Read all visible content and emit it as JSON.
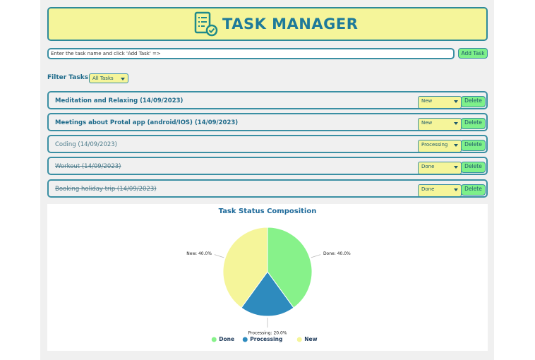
{
  "header": {
    "title": "TASK MANAGER"
  },
  "input": {
    "placeholder": "Enter the task name and click 'Add Task' =>",
    "button": "Add Task"
  },
  "filter": {
    "label": "Filter Tasks:",
    "selected": "All Tasks"
  },
  "tasks": [
    {
      "text": "Meditation and Relaxing (14/09/2023)",
      "status": "New",
      "button": "Delete"
    },
    {
      "text": "Meetings about Protal app (android/IOS) (14/09/2023)",
      "status": "New",
      "button": "Delete"
    },
    {
      "text": "Coding (14/09/2023)",
      "status": "Processing",
      "button": "Delete"
    },
    {
      "text": "Workout (14/09/2023)",
      "status": "Done",
      "button": "Delete"
    },
    {
      "text": "Booking holiday trip (14/09/2023)",
      "status": "Done",
      "button": "Delete"
    }
  ],
  "chart_data": {
    "type": "pie",
    "title": "Task Status Composition",
    "categories": [
      "Done",
      "Processing",
      "New"
    ],
    "values": [
      40,
      20,
      40
    ],
    "value_labels": [
      "Done: 40.0%",
      "Processing: 20.0%",
      "New: 40.0%"
    ],
    "colors": [
      "#87f28a",
      "#2e8bbe",
      "#f5f59a"
    ],
    "legend": "bottom"
  }
}
